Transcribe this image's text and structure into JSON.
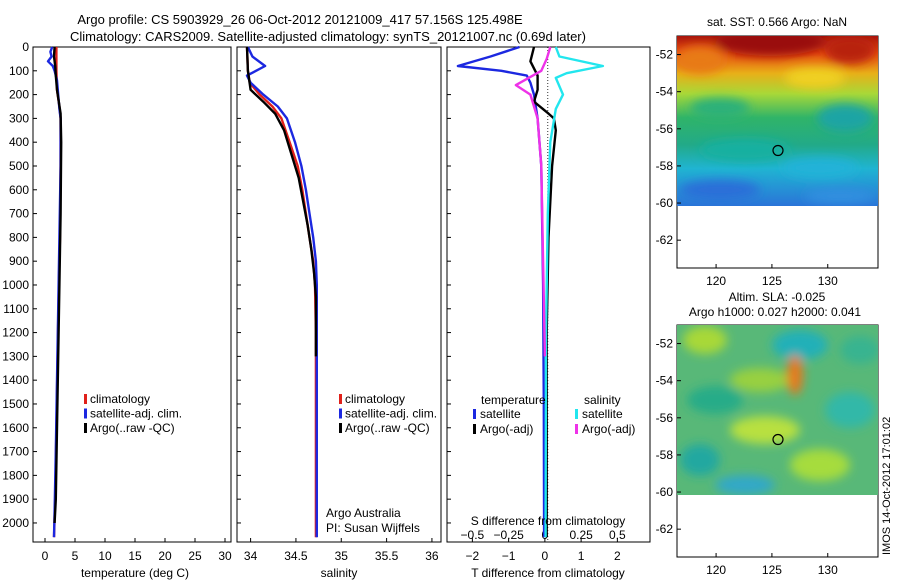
{
  "title_line1": "Argo profile: CS 5903929_26 06-Oct-2012 20121009_417 57.156S 125.498E",
  "title_line2": "Climatology: CARS2009. Satellite-adjusted climatology: synTS_20121007.nc (0.69d later)",
  "side_stamp": "IMOS 14-Oct-2012 17:01:02",
  "colors": {
    "climatology": "#e0201a",
    "satellite": "#1c28e0",
    "argo": "#000000",
    "sal_satellite": "#22e6ee",
    "sal_argo": "#ee32e8"
  },
  "chart_data": [
    {
      "type": "line",
      "xlabel": "temperature (deg C)",
      "ylabel": "",
      "xlim": [
        -2,
        31
      ],
      "ylim": [
        2080,
        0
      ],
      "xticks": [
        0,
        5,
        10,
        15,
        20,
        25,
        30
      ],
      "xtick_labels": [
        "0",
        "5",
        "10",
        "15",
        "20",
        "25",
        "30"
      ],
      "yticks": [
        0,
        100,
        200,
        300,
        400,
        500,
        600,
        700,
        800,
        900,
        1000,
        1100,
        1200,
        1300,
        1400,
        1500,
        1600,
        1700,
        1800,
        1900,
        2000
      ],
      "ytick_labels": [
        "0",
        "100",
        "200",
        "300",
        "400",
        "500",
        "600",
        "700",
        "800",
        "900",
        "1000",
        "1100",
        "1200",
        "1300",
        "1400",
        "1500",
        "1600",
        "1700",
        "1800",
        "1900",
        "2000"
      ],
      "legend": [
        "climatology",
        "satellite-adj. clim.",
        "Argo(..raw -QC)"
      ],
      "series": [
        {
          "name": "climatology",
          "x": [
            1.9,
            1.9,
            2.0,
            2.4,
            2.6,
            2.6,
            2.5,
            2.3,
            2.1,
            1.9,
            1.7,
            1.5
          ],
          "y": [
            0,
            100,
            180,
            250,
            300,
            500,
            800,
            1000,
            1300,
            1600,
            1900,
            2060
          ]
        },
        {
          "name": "satellite-adj. clim.",
          "x": [
            1.2,
            0.9,
            1.1,
            0.5,
            1.3,
            1.6,
            2.0,
            2.2,
            2.4,
            2.6,
            2.6,
            2.4,
            2.2,
            2.0,
            1.8,
            1.6,
            1.5
          ],
          "y": [
            0,
            20,
            40,
            60,
            80,
            100,
            140,
            200,
            260,
            300,
            500,
            800,
            1100,
            1400,
            1700,
            1950,
            2060
          ]
        },
        {
          "name": "Argo(..raw -QC)",
          "x": [
            1.6,
            1.5,
            1.7,
            1.8,
            2.0,
            2.3,
            2.6,
            2.7,
            2.6,
            2.4,
            2.2,
            2.0,
            1.8,
            1.6
          ],
          "y": [
            0,
            40,
            80,
            120,
            180,
            230,
            280,
            400,
            700,
            1000,
            1300,
            1600,
            1900,
            2000
          ]
        }
      ]
    },
    {
      "type": "line",
      "xlabel": "salinity",
      "ylabel": "",
      "xlim": [
        33.85,
        36.1
      ],
      "ylim": [
        2080,
        0
      ],
      "xticks": [
        34,
        34.5,
        35,
        35.5,
        36
      ],
      "xtick_labels": [
        "34",
        "34.5",
        "35",
        "35.5",
        "36"
      ],
      "legend": [
        "climatology",
        "satellite-adj. clim.",
        "Argo(..raw -QC)"
      ],
      "annotation": [
        "Argo Australia",
        "PI: Susan Wijffels"
      ],
      "series": [
        {
          "name": "climatology",
          "x": [
            33.96,
            33.97,
            33.99,
            34.1,
            34.24,
            34.34,
            34.43,
            34.52,
            34.57,
            34.61,
            34.65,
            34.69,
            34.71,
            34.72,
            34.72,
            34.72,
            34.72
          ],
          "y": [
            0,
            100,
            150,
            200,
            250,
            300,
            400,
            500,
            600,
            700,
            800,
            900,
            1000,
            1200,
            1500,
            1800,
            2060
          ]
        },
        {
          "name": "satellite-adj. clim.",
          "x": [
            33.97,
            34.02,
            34.16,
            33.96,
            34.0,
            34.14,
            34.3,
            34.4,
            34.49,
            34.56,
            34.61,
            34.65,
            34.69,
            34.72,
            34.73,
            34.73,
            34.73,
            34.73
          ],
          "y": [
            0,
            40,
            80,
            120,
            150,
            200,
            250,
            300,
            400,
            500,
            600,
            700,
            800,
            900,
            1000,
            1200,
            1500,
            2060
          ]
        },
        {
          "name": "Argo(..raw -QC)",
          "x": [
            33.96,
            33.97,
            34.0,
            34.14,
            34.27,
            34.37,
            34.45,
            34.53,
            34.58,
            34.63,
            34.67,
            34.7,
            34.72,
            34.72,
            34.72
          ],
          "y": [
            0,
            100,
            180,
            230,
            280,
            350,
            450,
            550,
            650,
            750,
            850,
            950,
            1050,
            1200,
            1300
          ]
        }
      ]
    },
    {
      "type": "line",
      "xlabel": "T difference from climatology",
      "xlabel2": "S difference from climatology",
      "ylabel": "",
      "xlim": [
        -2.7,
        2.9
      ],
      "ylim": [
        2080,
        0
      ],
      "xticks": [
        -2,
        -1,
        0,
        1,
        2
      ],
      "xtick_labels": [
        "−2",
        "−1",
        "0",
        "1",
        "2"
      ],
      "xticks2": [
        -0.5,
        -0.25,
        0,
        0.25,
        0.5
      ],
      "xtick2_labels": [
        "−0.5",
        "−0.25",
        "0",
        "0.25",
        "0.5"
      ],
      "legend_headers": [
        "temperature",
        "salinity"
      ],
      "legend": [
        "satellite",
        "Argo(-adj)",
        "satellite",
        "Argo(-adj)"
      ],
      "series": [
        {
          "name": "satellite",
          "x": [
            -0.7,
            -1.5,
            -2.4,
            -1.2,
            -0.5,
            -0.4,
            -0.3,
            -0.2,
            -0.1,
            -0.05,
            -0.03,
            -0.02
          ],
          "y": [
            0,
            40,
            80,
            100,
            120,
            150,
            200,
            300,
            500,
            1000,
            1500,
            2060
          ]
        },
        {
          "name": "Argo(-adj)",
          "x": [
            -0.3,
            -0.4,
            -0.2,
            -0.2,
            -0.3,
            0.1,
            0.25,
            0.3,
            0.2,
            0.1,
            0.05,
            0.05
          ],
          "y": [
            0,
            60,
            120,
            180,
            230,
            280,
            300,
            350,
            500,
            800,
            1200,
            2060
          ]
        },
        {
          "name": "satellite",
          "x": [
            0.3,
            0.4,
            1.6,
            0.6,
            0.3,
            0.5,
            0.3,
            0.15,
            0.08,
            0.03,
            0.02
          ],
          "y": [
            0,
            40,
            80,
            110,
            130,
            200,
            260,
            400,
            700,
            1200,
            2060
          ]
        },
        {
          "name": "Argo(-adj)",
          "x": [
            0.15,
            0.05,
            -0.1,
            -0.8,
            -0.4,
            -0.2,
            -0.1,
            -0.05,
            0
          ],
          "y": [
            0,
            50,
            100,
            160,
            200,
            300,
            500,
            900,
            1300
          ]
        }
      ]
    },
    {
      "type": "heatmap",
      "title": "sat. SST: 0.566 Argo: NaN",
      "xlim": [
        116.5,
        134.5
      ],
      "ylim": [
        -63.5,
        -51
      ],
      "xticks": [
        120,
        125,
        130
      ],
      "xtick_labels": [
        "120",
        "125",
        "130"
      ],
      "yticks": [
        -52,
        -54,
        -56,
        -58,
        -60,
        -62
      ],
      "ytick_labels": [
        "-52",
        "-54",
        "-56",
        "-58",
        "-60",
        "-62"
      ],
      "data_ylim": [
        -60,
        -51
      ],
      "marker": {
        "lon": 125.5,
        "lat": -57.16
      }
    },
    {
      "type": "heatmap",
      "title": "Altim. SLA: -0.025",
      "subtitle": "Argo h1000: 0.027 h2000: 0.041",
      "xlim": [
        116.5,
        134.5
      ],
      "ylim": [
        -63.5,
        -51
      ],
      "xticks": [
        120,
        125,
        130
      ],
      "xtick_labels": [
        "120",
        "125",
        "130"
      ],
      "yticks": [
        -52,
        -54,
        -56,
        -58,
        -60,
        -62
      ],
      "ytick_labels": [
        "-52",
        "-54",
        "-56",
        "-58",
        "-60",
        "-62"
      ],
      "data_ylim": [
        -60,
        -51
      ],
      "marker": {
        "lon": 125.5,
        "lat": -57.16
      }
    }
  ]
}
